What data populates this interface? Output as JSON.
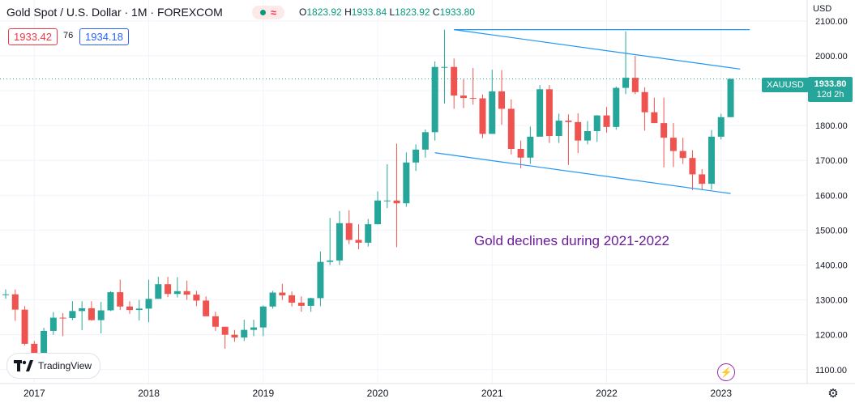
{
  "header": {
    "title": "Gold Spot / U.S. Dollar · 1M · FOREXCOM",
    "ohlc": {
      "o_label": "O",
      "o": "1823.92",
      "h_label": "H",
      "h": "1933.84",
      "l_label": "L",
      "l": "1823.92",
      "c_label": "C",
      "c": "1933.80"
    },
    "sell_price": "1933.42",
    "spread": "76",
    "buy_price": "1934.18",
    "currency": "USD",
    "status_icons": [
      "market-open-dot-icon",
      "wave-icon"
    ]
  },
  "price_scale": {
    "symbol": "XAUUSD",
    "last_price": "1933.80",
    "countdown": "12d 2h"
  },
  "annotation": "Gold declines during 2021-2022",
  "branding": {
    "logo_text": "TradingView"
  },
  "colors": {
    "up": "#26a69a",
    "down": "#ef5350",
    "trendline": "#2196f3",
    "annotation": "#6a1b9a"
  },
  "chart_data": {
    "type": "candlestick",
    "interval": "1M",
    "ylim": [
      1060,
      2160
    ],
    "y_ticks": [
      1100,
      1200,
      1300,
      1400,
      1500,
      1600,
      1700,
      1800,
      1900,
      2000,
      2100
    ],
    "y_tick_labels": [
      "1100.00",
      "1200.00",
      "1300.00",
      "1400.00",
      "1500.00",
      "1600.00",
      "1700.00",
      "1800.00",
      "1900.00",
      "2000.00",
      "2100.00"
    ],
    "x_ticks": [
      {
        "label": "2017",
        "index": 3
      },
      {
        "label": "2018",
        "index": 15
      },
      {
        "label": "2019",
        "index": 27
      },
      {
        "label": "2020",
        "index": 39
      },
      {
        "label": "2021",
        "index": 51
      },
      {
        "label": "2022",
        "index": 63
      },
      {
        "label": "2023",
        "index": 75
      }
    ],
    "start_month": "2016-09",
    "candles": [
      [
        1314,
        1330,
        1303,
        1316
      ],
      [
        1316,
        1330,
        1240,
        1272
      ],
      [
        1272,
        1282,
        1170,
        1174
      ],
      [
        1174,
        1182,
        1122,
        1147
      ],
      [
        1147,
        1220,
        1145,
        1211
      ],
      [
        1211,
        1265,
        1200,
        1249
      ],
      [
        1249,
        1262,
        1196,
        1248
      ],
      [
        1248,
        1296,
        1242,
        1268
      ],
      [
        1268,
        1296,
        1213,
        1276
      ],
      [
        1276,
        1296,
        1240,
        1242
      ],
      [
        1242,
        1294,
        1204,
        1270
      ],
      [
        1270,
        1325,
        1268,
        1322
      ],
      [
        1322,
        1358,
        1271,
        1281
      ],
      [
        1281,
        1296,
        1260,
        1271
      ],
      [
        1271,
        1300,
        1241,
        1275
      ],
      [
        1275,
        1358,
        1236,
        1303
      ],
      [
        1303,
        1366,
        1306,
        1345
      ],
      [
        1345,
        1366,
        1308,
        1317
      ],
      [
        1317,
        1365,
        1307,
        1325
      ],
      [
        1325,
        1355,
        1300,
        1315
      ],
      [
        1315,
        1326,
        1282,
        1298
      ],
      [
        1298,
        1310,
        1262,
        1253
      ],
      [
        1253,
        1266,
        1211,
        1223
      ],
      [
        1223,
        1215,
        1160,
        1200
      ],
      [
        1200,
        1214,
        1180,
        1192
      ],
      [
        1192,
        1243,
        1182,
        1214
      ],
      [
        1214,
        1243,
        1196,
        1221
      ],
      [
        1221,
        1284,
        1196,
        1281
      ],
      [
        1281,
        1326,
        1275,
        1321
      ],
      [
        1321,
        1346,
        1300,
        1313
      ],
      [
        1313,
        1324,
        1281,
        1292
      ],
      [
        1292,
        1310,
        1266,
        1283
      ],
      [
        1283,
        1306,
        1266,
        1305
      ],
      [
        1305,
        1439,
        1282,
        1409
      ],
      [
        1409,
        1535,
        1400,
        1413
      ],
      [
        1413,
        1555,
        1400,
        1520
      ],
      [
        1520,
        1557,
        1460,
        1472
      ],
      [
        1472,
        1517,
        1445,
        1464
      ],
      [
        1464,
        1532,
        1453,
        1517
      ],
      [
        1517,
        1611,
        1516,
        1585
      ],
      [
        1585,
        1689,
        1563,
        1585
      ],
      [
        1585,
        1748,
        1451,
        1577
      ],
      [
        1577,
        1723,
        1567,
        1694
      ],
      [
        1694,
        1746,
        1670,
        1731
      ],
      [
        1731,
        1789,
        1708,
        1781
      ],
      [
        1781,
        1984,
        1757,
        1968
      ],
      [
        1968,
        2075,
        1863,
        1968
      ],
      [
        1968,
        1992,
        1848,
        1886
      ],
      [
        1886,
        1933,
        1850,
        1879
      ],
      [
        1879,
        1965,
        1860,
        1878
      ],
      [
        1878,
        1889,
        1764,
        1776
      ],
      [
        1776,
        1960,
        1777,
        1898
      ],
      [
        1898,
        1959,
        1802,
        1848
      ],
      [
        1848,
        1875,
        1717,
        1733
      ],
      [
        1733,
        1757,
        1677,
        1708
      ],
      [
        1708,
        1797,
        1690,
        1768
      ],
      [
        1768,
        1916,
        1769,
        1904
      ],
      [
        1904,
        1916,
        1750,
        1770
      ],
      [
        1770,
        1834,
        1750,
        1814
      ],
      [
        1814,
        1832,
        1687,
        1810
      ],
      [
        1810,
        1835,
        1721,
        1757
      ],
      [
        1757,
        1813,
        1746,
        1784
      ],
      [
        1784,
        1830,
        1753,
        1829
      ],
      [
        1829,
        1853,
        1780,
        1796
      ],
      [
        1796,
        1912,
        1788,
        1908
      ],
      [
        1908,
        2070,
        1890,
        1937
      ],
      [
        1937,
        2000,
        1890,
        1896
      ],
      [
        1896,
        1910,
        1785,
        1838
      ],
      [
        1838,
        1880,
        1807,
        1807
      ],
      [
        1807,
        1880,
        1680,
        1765
      ],
      [
        1765,
        1807,
        1681,
        1727
      ],
      [
        1727,
        1765,
        1690,
        1707
      ],
      [
        1707,
        1729,
        1615,
        1660
      ],
      [
        1660,
        1675,
        1617,
        1633
      ],
      [
        1633,
        1787,
        1616,
        1768
      ],
      [
        1768,
        1834,
        1760,
        1824
      ],
      [
        1824,
        1934,
        1824,
        1934
      ]
    ],
    "trendlines": [
      {
        "from": {
          "index": 47,
          "price": 2075
        },
        "to": {
          "index": 78,
          "price": 2075
        }
      },
      {
        "from": {
          "index": 47,
          "price": 2075
        },
        "to": {
          "index": 77,
          "price": 1962
        }
      },
      {
        "from": {
          "index": 45,
          "price": 1722
        },
        "to": {
          "index": 76,
          "price": 1605
        }
      }
    ],
    "last_price_line": 1933.8
  }
}
